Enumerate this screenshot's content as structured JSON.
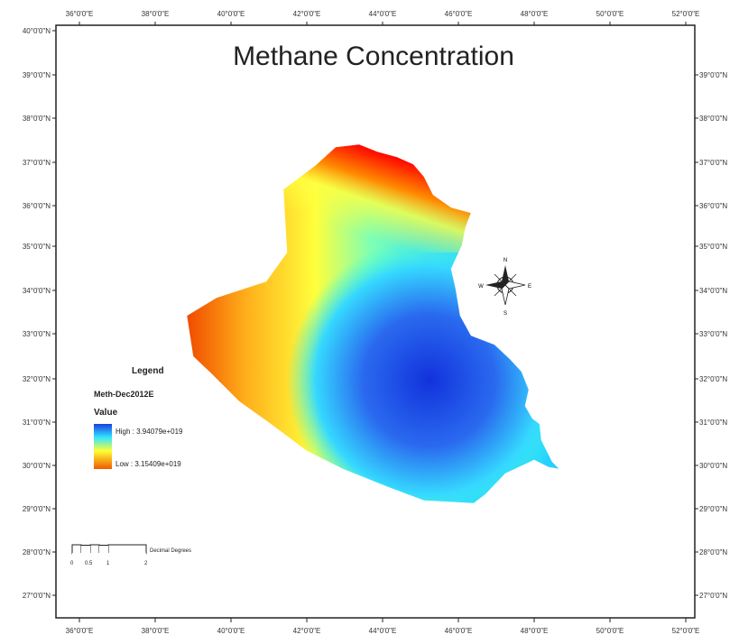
{
  "map": {
    "title": "Methane Concentration",
    "top_lon_labels": [
      "36°0'0\"E",
      "38°0'0\"E",
      "40°0'0\"E",
      "42°0'0\"E",
      "44°0'0\"E",
      "46°0'0\"E",
      "48°0'0\"E",
      "50°0'0\"E",
      "52°0'0\"E"
    ],
    "bottom_lon_labels": [
      "36°0'0\"E",
      "38°0'0\"E",
      "40°0'0\"E",
      "42°0'0\"E",
      "44°0'0\"E",
      "46°0'0\"E",
      "48°0'0\"E",
      "50°0'0\"E",
      "52°0'0\"E"
    ],
    "left_lat_labels": [
      "40°0'0\"N",
      "39°0'0\"N",
      "38°0'0\"N",
      "37°0'0\"N",
      "36°0'0\"N",
      "35°0'0\"N",
      "34°0'0\"N",
      "33°0'0\"N",
      "32°0'0\"N",
      "31°0'0\"N",
      "30°0'0\"N",
      "29°0'0\"N",
      "28°0'0\"N",
      "27°0'0\"N"
    ],
    "right_lat_labels": [
      "39°0'0\"N",
      "38°0'0\"N",
      "37°0'0\"N",
      "36°0'0\"N",
      "35°0'0\"N",
      "34°0'0\"N",
      "33°0'0\"N",
      "32°0'0\"N",
      "31°0'0\"N",
      "30°0'0\"N",
      "29°0'0\"N",
      "28°0'0\"N",
      "27°0'0\"N"
    ],
    "compass_letters": {
      "n": "N",
      "s": "S",
      "e": "E",
      "w": "W"
    }
  },
  "legend": {
    "title": "Legend",
    "layer": "Meth-Dec2012E",
    "field": "Value",
    "high_label": "High : 3.94079e+019",
    "low_label": "Low : 3.15409e+019",
    "high_color": "#1a3fe0",
    "low_color": "#f05a00"
  },
  "scale_bar": {
    "unit": "Decimal Degrees",
    "tick_labels": [
      "0",
      "0.5",
      "1",
      "2"
    ]
  },
  "colors": {
    "ramp_high": "#1f3ee6",
    "ramp_mid_cyan": "#33e6ff",
    "ramp_mid_yellow": "#ffff33",
    "ramp_low": "#ff0000"
  }
}
